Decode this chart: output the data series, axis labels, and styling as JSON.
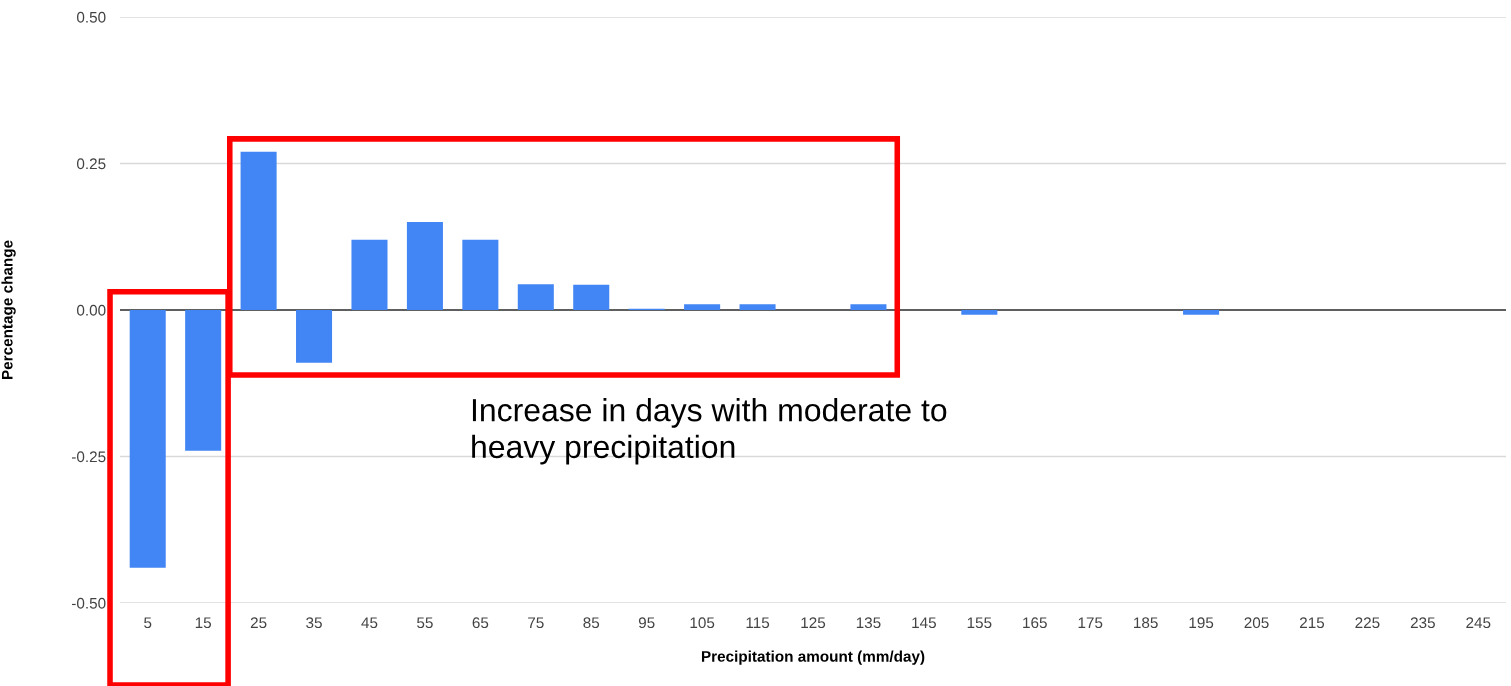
{
  "chart_data": {
    "type": "bar",
    "xlabel": "Precipitation amount (mm/day)",
    "ylabel": "Percentage change",
    "categories": [
      "5",
      "15",
      "25",
      "35",
      "45",
      "55",
      "65",
      "75",
      "85",
      "95",
      "105",
      "115",
      "125",
      "135",
      "145",
      "155",
      "165",
      "175",
      "185",
      "195",
      "205",
      "215",
      "225",
      "235",
      "245"
    ],
    "values": [
      -0.44,
      -0.24,
      0.27,
      -0.09,
      0.12,
      0.15,
      0.12,
      0.044,
      0.043,
      0.002,
      0.01,
      0.01,
      0,
      0.01,
      0,
      -0.008,
      0,
      0,
      0,
      -0.008,
      0,
      0,
      0,
      0,
      0
    ],
    "color": "#4285f4",
    "ylim": [
      -0.5,
      0.5
    ],
    "yticks": [
      {
        "value": -0.5,
        "label": "-0.50"
      },
      {
        "value": -0.25,
        "label": "-0.25"
      },
      {
        "value": 0,
        "label": "0.00"
      },
      {
        "value": 0.25,
        "label": "0.25"
      },
      {
        "value": 0.5,
        "label": "0.50"
      }
    ],
    "grid": "y",
    "annotations": [
      "Increase in days with moderate to heavy precipitation"
    ]
  }
}
